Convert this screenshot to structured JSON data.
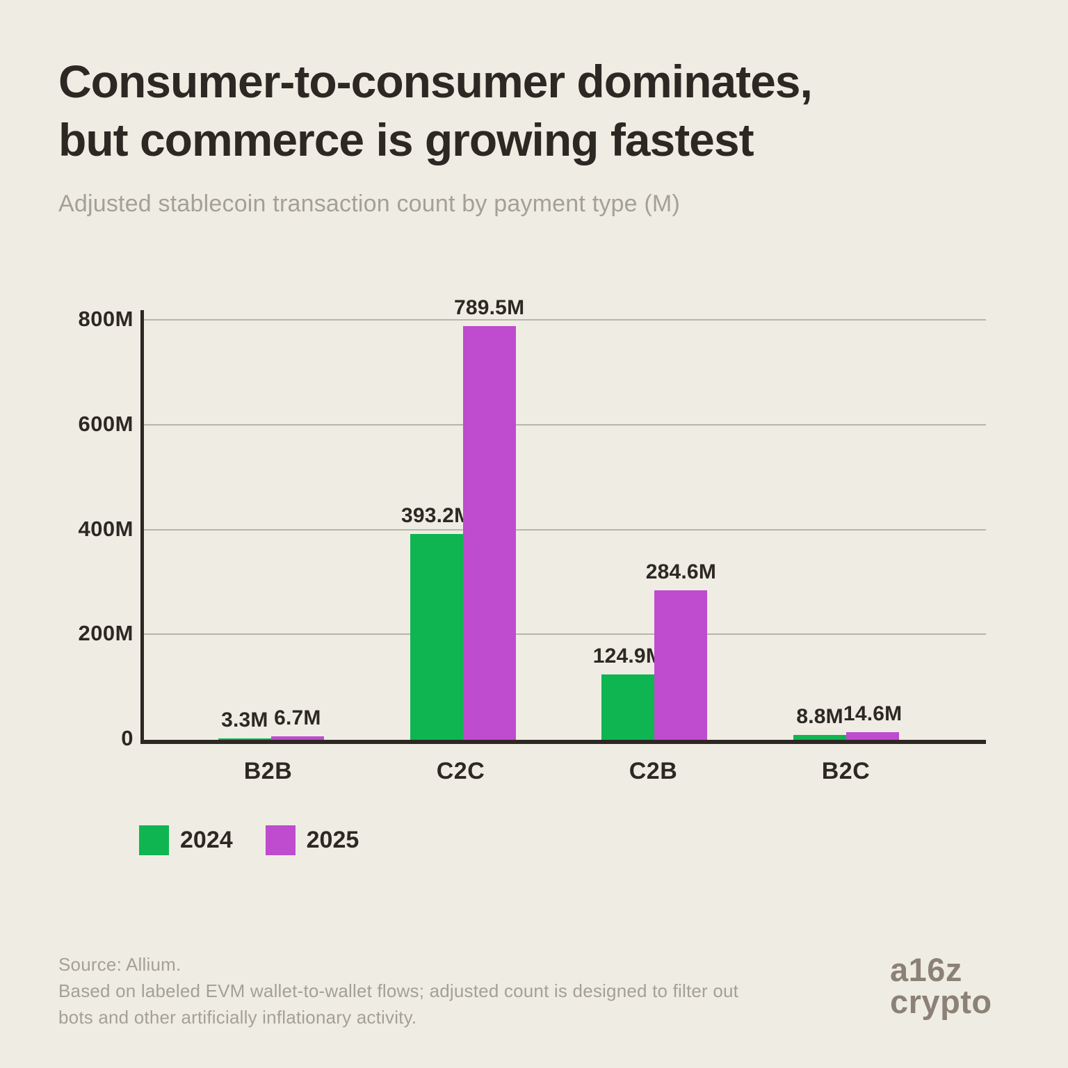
{
  "header": {
    "title_line1": "Consumer-to-consumer dominates,",
    "title_line2": "but commerce is growing fastest",
    "subtitle": "Adjusted stablecoin transaction count by payment type (M)"
  },
  "chart_data": {
    "type": "bar",
    "title": "Consumer-to-consumer dominates, but commerce is growing fastest",
    "subtitle": "Adjusted stablecoin transaction count by payment type (M)",
    "unit": "M",
    "categories": [
      "B2B",
      "C2C",
      "C2B",
      "B2C"
    ],
    "series": [
      {
        "name": "2024",
        "color": "#0FB551",
        "values": [
          3.3,
          393.2,
          124.9,
          8.8
        ],
        "data_labels": [
          "3.3M",
          "393.2M",
          "124.9M",
          "8.8M"
        ]
      },
      {
        "name": "2025",
        "color": "#BF4BCE",
        "values": [
          6.7,
          789.5,
          284.6,
          14.6
        ],
        "data_labels": [
          "6.7M",
          "789.5M",
          "284.6M",
          "14.6M"
        ]
      }
    ],
    "y_axis": {
      "min": 0,
      "max": 800,
      "ticks": [
        {
          "value": 0,
          "label": "0"
        },
        {
          "value": 200,
          "label": "200M"
        },
        {
          "value": 400,
          "label": "400M"
        },
        {
          "value": 600,
          "label": "600M"
        },
        {
          "value": 800,
          "label": "800M"
        }
      ]
    },
    "grid": true,
    "legend_position": "bottom-left"
  },
  "footer": {
    "line1": "Source: Allium.",
    "line2": "Based on labeled EVM wallet-to-wallet flows; adjusted count is designed to filter out",
    "line3": "bots and other artificially inflationary activity."
  },
  "logo": {
    "line1": "a16z",
    "line2": "crypto"
  },
  "colors": {
    "background": "#EFEDE3",
    "ink": "#2D2823",
    "muted": "#A5A096",
    "grid": "#B7B4AC",
    "axis": "#2D2823",
    "logo": "#8C8177",
    "green_2024": "#0FB551",
    "purple_2025": "#BF4BCE"
  }
}
